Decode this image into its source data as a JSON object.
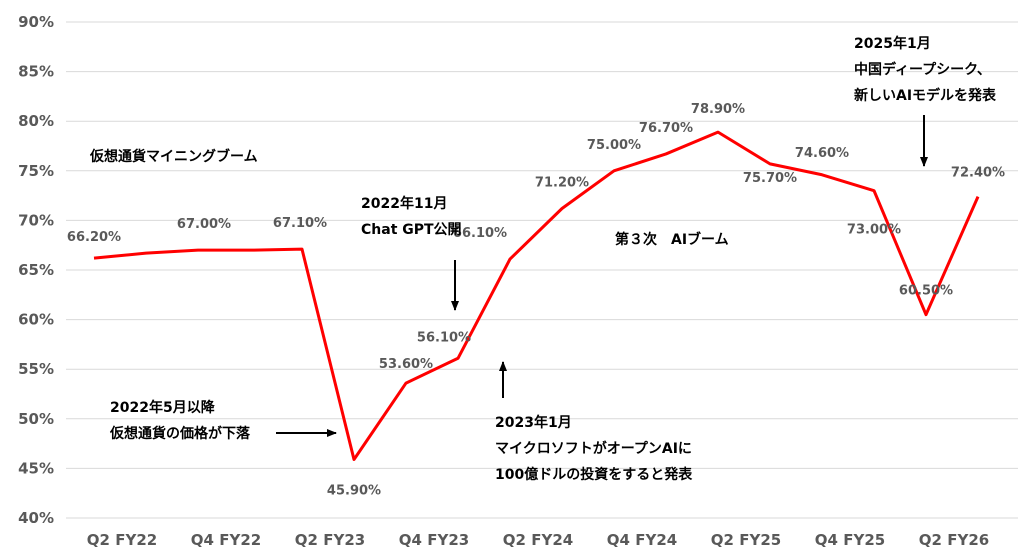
{
  "chart_data": {
    "type": "line",
    "title": "",
    "xlabel": "",
    "ylabel": "",
    "ylim": [
      40,
      90
    ],
    "y_ticks": [
      40,
      45,
      50,
      55,
      60,
      65,
      70,
      75,
      80,
      85,
      90
    ],
    "y_tick_labels": [
      "40%",
      "45%",
      "50%",
      "55%",
      "60%",
      "65%",
      "70%",
      "75%",
      "80%",
      "85%",
      "90%"
    ],
    "x_tick_labels": [
      "Q2 FY22",
      "Q4 FY22",
      "Q2 FY23",
      "Q4 FY23",
      "Q2 FY24",
      "Q4 FY24",
      "Q2 FY25",
      "Q4 FY25",
      "Q2 FY26"
    ],
    "grid": true,
    "legend": "none",
    "series": [
      {
        "color": "#ff0000",
        "values": [
          66.2,
          66.7,
          67.0,
          67.0,
          67.1,
          45.9,
          53.6,
          56.1,
          66.1,
          71.2,
          75.0,
          76.7,
          78.9,
          75.7,
          74.6,
          73.0,
          60.5,
          72.4
        ],
        "data_labels": [
          "66.20%",
          "",
          "67.00%",
          "",
          "67.10%",
          "45.90%",
          "53.60%",
          "56.10%",
          "66.10%",
          "71.20%",
          "75.00%",
          "76.70%",
          "78.90%",
          "75.70%",
          "74.60%",
          "73.00%",
          "60.50%",
          "72.40%"
        ]
      }
    ],
    "annotations": [
      {
        "id": "mining",
        "lines": [
          "仮想通貨マイニングブーム"
        ]
      },
      {
        "id": "crash",
        "lines": [
          "2022年5月以降",
          "仮想通貨の価格が下落"
        ]
      },
      {
        "id": "chatgpt",
        "lines": [
          "2022年11月",
          "Chat GPT公開"
        ]
      },
      {
        "id": "openai",
        "lines": [
          "2023年1月",
          "マイクロソフトがオープンAIに",
          "100億ドルの投資をすると発表"
        ]
      },
      {
        "id": "aiboom",
        "lines": [
          "第３次　AIブーム"
        ]
      },
      {
        "id": "deepseek",
        "lines": [
          "2025年1月",
          "中国ディープシーク、",
          "新しいAIモデルを発表"
        ]
      }
    ]
  }
}
